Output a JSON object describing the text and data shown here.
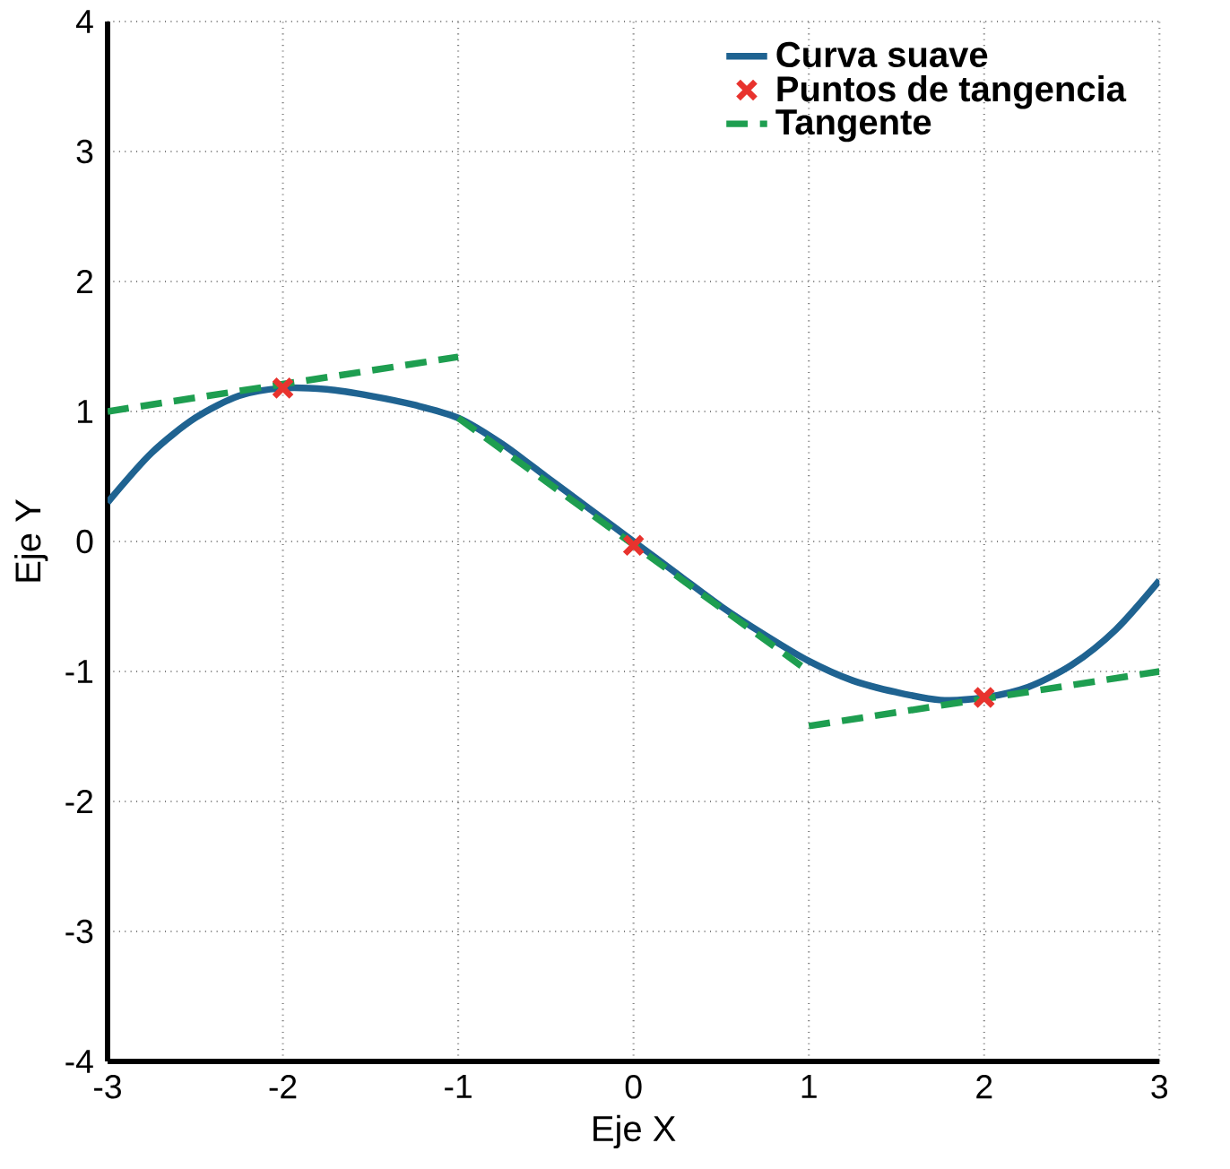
{
  "chart_data": {
    "type": "line",
    "xlabel": "Eje X",
    "ylabel": "Eje Y",
    "xlim": [
      -3,
      3
    ],
    "ylim": [
      -4,
      4
    ],
    "xticks": [
      -3,
      -2,
      -1,
      0,
      1,
      2,
      3
    ],
    "yticks": [
      -4,
      -3,
      -2,
      -1,
      0,
      1,
      2,
      3,
      4
    ],
    "grid": true,
    "legend": "top right",
    "series": [
      {
        "name": "Curva suave",
        "color": "#1f6391",
        "line_style": "solid",
        "x": [
          -3,
          -2.75,
          -2.5,
          -2.25,
          -2,
          -1.75,
          -1.5,
          -1.25,
          -1,
          -0.75,
          -0.5,
          -0.25,
          0,
          0.25,
          0.5,
          0.75,
          1,
          1.25,
          1.5,
          1.75,
          2,
          2.25,
          2.5,
          2.75,
          3
        ],
        "values": [
          0.3,
          0.68,
          0.95,
          1.12,
          1.18,
          1.17,
          1.12,
          1.05,
          0.95,
          0.75,
          0.5,
          0.25,
          0,
          -0.25,
          -0.5,
          -0.72,
          -0.92,
          -1.07,
          -1.16,
          -1.22,
          -1.2,
          -1.12,
          -0.95,
          -0.68,
          -0.3
        ]
      },
      {
        "name": "Puntos de tangencia",
        "type": "scatter",
        "color": "#e8332e",
        "marker": "cross",
        "x": [
          -2,
          0,
          2
        ],
        "values": [
          1.18,
          -0.03,
          -1.2
        ]
      },
      {
        "name": "Tangente",
        "color": "#1e9e50",
        "line_style": "dashed",
        "x": [
          -3,
          -1
        ],
        "values": [
          1.0,
          1.42
        ]
      },
      {
        "color": "#1e9e50",
        "line_style": "dashed",
        "x": [
          -1,
          1
        ],
        "values": [
          0.95,
          -1.0
        ]
      },
      {
        "color": "#1e9e50",
        "line_style": "dashed",
        "x": [
          1,
          3
        ],
        "values": [
          -1.42,
          -1.0
        ]
      }
    ]
  }
}
